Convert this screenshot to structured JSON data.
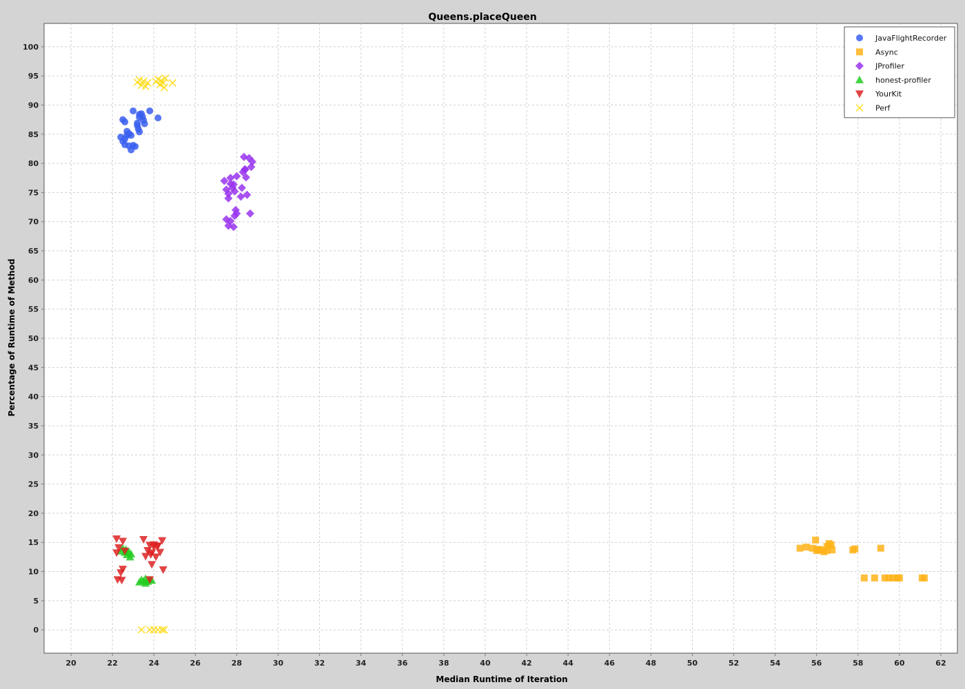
{
  "chart_data": {
    "type": "scatter",
    "title": "Queens.placeQueen",
    "xlabel": "Median Runtime of Iteration",
    "ylabel": "Percentage of Runtime of Method",
    "xlim": [
      18.7,
      62.8
    ],
    "ylim": [
      -4,
      104
    ],
    "xticks": [
      20,
      22,
      24,
      26,
      28,
      30,
      32,
      34,
      36,
      38,
      40,
      42,
      44,
      46,
      48,
      50,
      52,
      54,
      56,
      58,
      60,
      62
    ],
    "yticks": [
      0,
      5,
      10,
      15,
      20,
      25,
      30,
      35,
      40,
      45,
      50,
      55,
      60,
      65,
      70,
      75,
      80,
      85,
      90,
      95,
      100
    ],
    "grid": true,
    "legend_position": "top-right",
    "series": [
      {
        "name": "JavaFlightRecorder",
        "marker": "circle",
        "color": "#3a5ff0",
        "points": [
          [
            22.4,
            84.5
          ],
          [
            22.5,
            83.8
          ],
          [
            22.6,
            84.2
          ],
          [
            22.7,
            84.8
          ],
          [
            22.5,
            87.5
          ],
          [
            22.6,
            87.1
          ],
          [
            22.7,
            85.5
          ],
          [
            22.8,
            85.1
          ],
          [
            22.9,
            84.8
          ],
          [
            22.6,
            83.2
          ],
          [
            22.8,
            83.0
          ],
          [
            22.9,
            82.3
          ],
          [
            23.0,
            83.1
          ],
          [
            23.1,
            82.9
          ],
          [
            23.0,
            89.0
          ],
          [
            23.2,
            86.5
          ],
          [
            23.25,
            85.9
          ],
          [
            23.3,
            85.4
          ],
          [
            23.3,
            88.4
          ],
          [
            23.4,
            88.5
          ],
          [
            23.45,
            88.0
          ],
          [
            23.5,
            87.4
          ],
          [
            23.55,
            86.8
          ],
          [
            23.3,
            87.9
          ],
          [
            23.8,
            89.0
          ],
          [
            24.2,
            87.8
          ],
          [
            23.2,
            86.9
          ]
        ]
      },
      {
        "name": "Async",
        "marker": "square",
        "color": "#ffb319",
        "points": [
          [
            55.2,
            14.0
          ],
          [
            55.5,
            14.2
          ],
          [
            55.8,
            14.0
          ],
          [
            55.95,
            15.4
          ],
          [
            56.0,
            13.6
          ],
          [
            56.1,
            13.8
          ],
          [
            56.2,
            13.7
          ],
          [
            56.35,
            13.4
          ],
          [
            56.5,
            13.6
          ],
          [
            56.6,
            14.8
          ],
          [
            56.7,
            14.6
          ],
          [
            56.75,
            13.7
          ],
          [
            56.5,
            14.3
          ],
          [
            57.75,
            13.7
          ],
          [
            57.85,
            13.9
          ],
          [
            59.1,
            14.0
          ],
          [
            58.3,
            8.9
          ],
          [
            58.8,
            8.9
          ],
          [
            59.3,
            8.9
          ],
          [
            59.5,
            8.9
          ],
          [
            59.9,
            8.9
          ],
          [
            60.0,
            8.9
          ],
          [
            61.1,
            8.9
          ],
          [
            61.2,
            8.9
          ],
          [
            59.7,
            8.9
          ]
        ]
      },
      {
        "name": "JProfiler",
        "marker": "diamond",
        "color": "#9933ee",
        "points": [
          [
            27.4,
            77.0
          ],
          [
            27.5,
            75.5
          ],
          [
            27.6,
            74.8
          ],
          [
            27.6,
            74.0
          ],
          [
            27.7,
            76.5
          ],
          [
            27.7,
            77.5
          ],
          [
            27.8,
            75.8
          ],
          [
            27.85,
            76.4
          ],
          [
            27.9,
            75.2
          ],
          [
            28.0,
            77.8
          ],
          [
            27.5,
            70.4
          ],
          [
            27.6,
            69.3
          ],
          [
            27.7,
            70.1
          ],
          [
            27.85,
            69.1
          ],
          [
            27.9,
            71.0
          ],
          [
            27.95,
            72.0
          ],
          [
            28.0,
            71.4
          ],
          [
            28.2,
            74.3
          ],
          [
            28.25,
            75.8
          ],
          [
            28.3,
            78.5
          ],
          [
            28.35,
            81.1
          ],
          [
            28.4,
            79.0
          ],
          [
            28.45,
            77.6
          ],
          [
            28.5,
            74.6
          ],
          [
            28.6,
            80.9
          ],
          [
            28.7,
            79.4
          ],
          [
            28.75,
            80.3
          ],
          [
            28.65,
            71.4
          ],
          [
            28.4,
            78.9
          ]
        ]
      },
      {
        "name": "honest-profiler",
        "marker": "triangle-up",
        "color": "#22cc22",
        "points": [
          [
            22.4,
            13.5
          ],
          [
            22.5,
            14.0
          ],
          [
            22.6,
            13.3
          ],
          [
            22.65,
            13.8
          ],
          [
            22.7,
            12.9
          ],
          [
            22.8,
            13.4
          ],
          [
            22.85,
            12.5
          ],
          [
            22.9,
            13.0
          ],
          [
            23.3,
            8.2
          ],
          [
            23.4,
            8.6
          ],
          [
            23.5,
            8.4
          ],
          [
            23.6,
            8.8
          ],
          [
            23.7,
            8.3
          ],
          [
            23.8,
            8.6
          ],
          [
            23.9,
            8.5
          ],
          [
            23.6,
            8.0
          ]
        ]
      },
      {
        "name": "YourKit",
        "marker": "triangle-down",
        "color": "#dd2222",
        "points": [
          [
            22.2,
            15.6
          ],
          [
            22.3,
            14.1
          ],
          [
            22.2,
            13.2
          ],
          [
            22.25,
            8.6
          ],
          [
            22.4,
            9.8
          ],
          [
            22.5,
            10.4
          ],
          [
            22.45,
            8.5
          ],
          [
            22.5,
            15.2
          ],
          [
            22.6,
            13.5
          ],
          [
            23.5,
            15.5
          ],
          [
            23.6,
            12.6
          ],
          [
            23.7,
            13.6
          ],
          [
            23.8,
            14.5
          ],
          [
            23.85,
            12.9
          ],
          [
            23.9,
            11.2
          ],
          [
            23.9,
            13.2
          ],
          [
            24.0,
            14.2
          ],
          [
            24.1,
            12.5
          ],
          [
            24.15,
            14.3
          ],
          [
            24.3,
            13.3
          ],
          [
            24.4,
            15.3
          ],
          [
            24.45,
            10.3
          ],
          [
            23.8,
            8.6
          ],
          [
            24.0,
            14.6
          ],
          [
            24.2,
            14.4
          ]
        ]
      },
      {
        "name": "Perf",
        "marker": "x",
        "color": "#ffdd22",
        "points": [
          [
            23.2,
            93.9
          ],
          [
            23.3,
            94.3
          ],
          [
            23.4,
            93.4
          ],
          [
            23.5,
            94.1
          ],
          [
            23.6,
            93.2
          ],
          [
            23.7,
            93.8
          ],
          [
            24.1,
            94.0
          ],
          [
            24.2,
            94.4
          ],
          [
            24.3,
            93.5
          ],
          [
            24.35,
            94.2
          ],
          [
            24.45,
            93.8
          ],
          [
            24.55,
            94.6
          ],
          [
            24.5,
            93.0
          ],
          [
            24.9,
            93.8
          ],
          [
            23.4,
            0.0
          ],
          [
            23.8,
            0.0
          ],
          [
            24.0,
            0.0
          ],
          [
            24.2,
            0.0
          ],
          [
            24.4,
            0.0
          ],
          [
            24.5,
            0.0
          ]
        ]
      }
    ]
  }
}
